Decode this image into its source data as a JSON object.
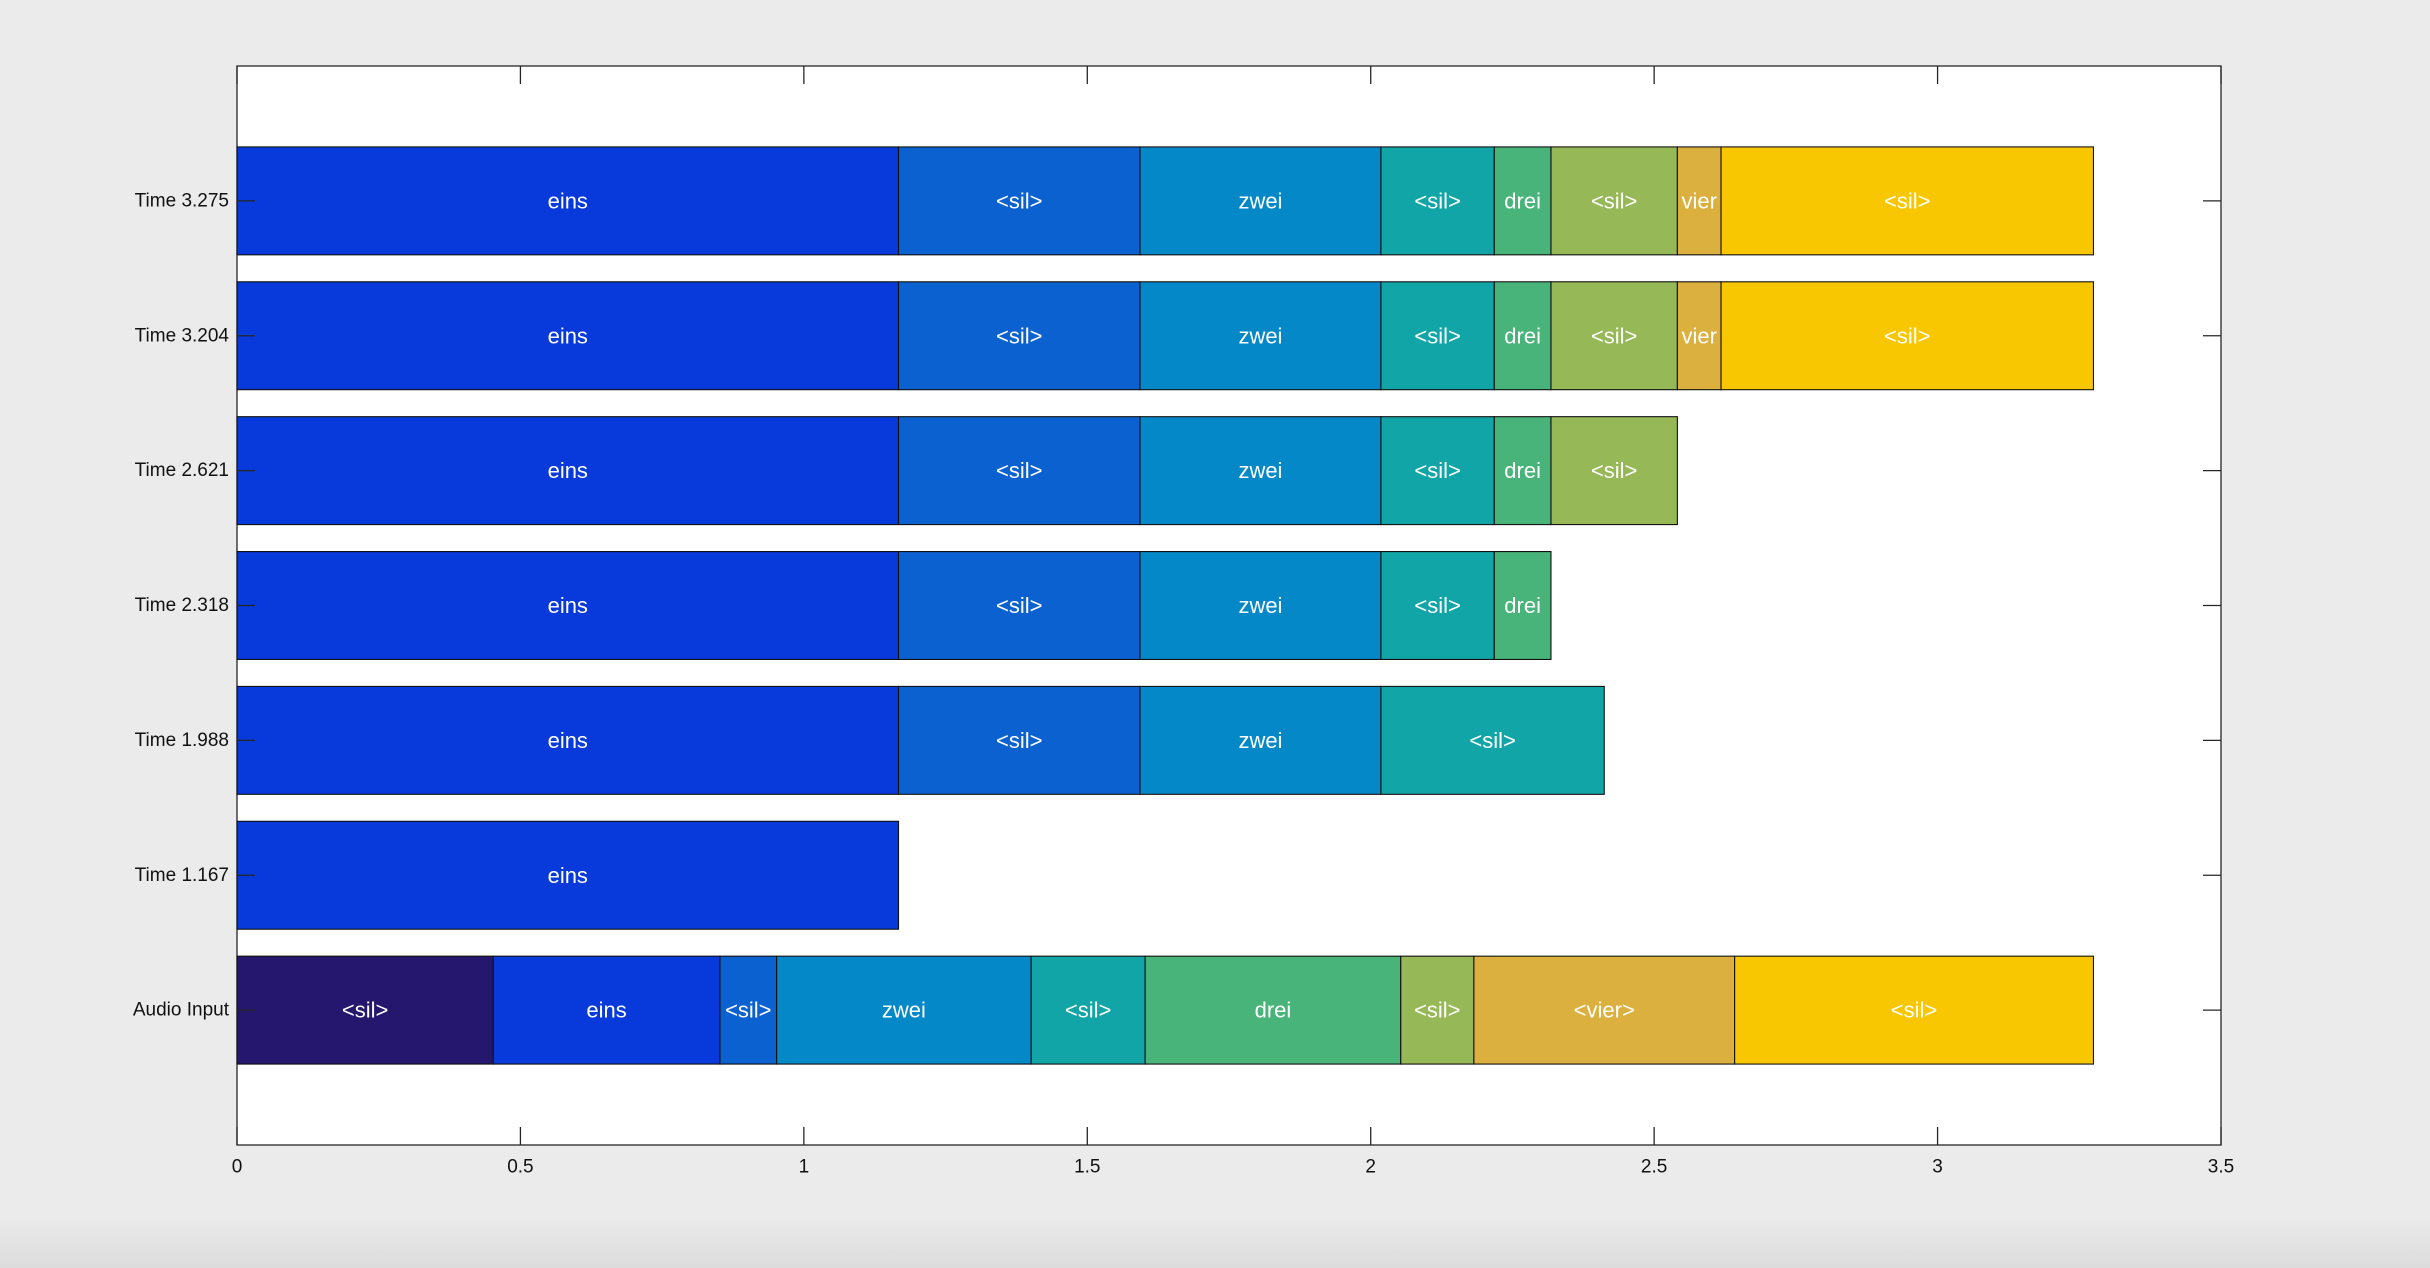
{
  "chart_data": {
    "type": "bar",
    "orientation": "horizontal-stacked",
    "title": "",
    "xlabel": "",
    "ylabel": "",
    "xlim": [
      0,
      3.5
    ],
    "xticks": [
      0,
      0.5,
      1,
      1.5,
      2,
      2.5,
      3,
      3.5
    ],
    "xtick_labels": [
      "0",
      "0.5",
      "1",
      "1.5",
      "2",
      "2.5",
      "3",
      "3.5"
    ],
    "grid": false,
    "categories": [
      "Time 3.275",
      "Time 3.204",
      "Time 2.621",
      "Time 2.318",
      "Time 1.988",
      "Time 1.167",
      "Audio Input"
    ],
    "rows": [
      {
        "label": "Time 3.275",
        "segments": [
          {
            "word": "eins",
            "start": 0,
            "end": 1.167,
            "color": "#0739db"
          },
          {
            "word": "<sil>",
            "start": 1.167,
            "end": 1.593,
            "color": "#0c61d0"
          },
          {
            "word": "zwei",
            "start": 1.593,
            "end": 2.018,
            "color": "#0488c7"
          },
          {
            "word": "<sil>",
            "start": 2.018,
            "end": 2.218,
            "color": "#12a5a8"
          },
          {
            "word": "drei",
            "start": 2.218,
            "end": 2.318,
            "color": "#48b479"
          },
          {
            "word": "<sil>",
            "start": 2.318,
            "end": 2.541,
            "color": "#97b856"
          },
          {
            "word": "vier",
            "start": 2.541,
            "end": 2.618,
            "color": "#dcb03e"
          },
          {
            "word": "<sil>",
            "start": 2.618,
            "end": 3.275,
            "color": "#f9c701"
          }
        ]
      },
      {
        "label": "Time 3.204",
        "segments": [
          {
            "word": "eins",
            "start": 0,
            "end": 1.167,
            "color": "#0739db"
          },
          {
            "word": "<sil>",
            "start": 1.167,
            "end": 1.593,
            "color": "#0c61d0"
          },
          {
            "word": "zwei",
            "start": 1.593,
            "end": 2.018,
            "color": "#0488c7"
          },
          {
            "word": "<sil>",
            "start": 2.018,
            "end": 2.218,
            "color": "#12a5a8"
          },
          {
            "word": "drei",
            "start": 2.218,
            "end": 2.318,
            "color": "#48b479"
          },
          {
            "word": "<sil>",
            "start": 2.318,
            "end": 2.541,
            "color": "#97b856"
          },
          {
            "word": "vier",
            "start": 2.541,
            "end": 2.618,
            "color": "#dcb03e"
          },
          {
            "word": "<sil>",
            "start": 2.618,
            "end": 3.275,
            "color": "#f9c701"
          }
        ]
      },
      {
        "label": "Time 2.621",
        "segments": [
          {
            "word": "eins",
            "start": 0,
            "end": 1.167,
            "color": "#0739db"
          },
          {
            "word": "<sil>",
            "start": 1.167,
            "end": 1.593,
            "color": "#0c61d0"
          },
          {
            "word": "zwei",
            "start": 1.593,
            "end": 2.018,
            "color": "#0488c7"
          },
          {
            "word": "<sil>",
            "start": 2.018,
            "end": 2.218,
            "color": "#12a5a8"
          },
          {
            "word": "drei",
            "start": 2.218,
            "end": 2.318,
            "color": "#48b479"
          },
          {
            "word": "<sil>",
            "start": 2.318,
            "end": 2.541,
            "color": "#97b856"
          }
        ]
      },
      {
        "label": "Time 2.318",
        "segments": [
          {
            "word": "eins",
            "start": 0,
            "end": 1.167,
            "color": "#0739db"
          },
          {
            "word": "<sil>",
            "start": 1.167,
            "end": 1.593,
            "color": "#0c61d0"
          },
          {
            "word": "zwei",
            "start": 1.593,
            "end": 2.018,
            "color": "#0488c7"
          },
          {
            "word": "<sil>",
            "start": 2.018,
            "end": 2.218,
            "color": "#12a5a8"
          },
          {
            "word": "drei",
            "start": 2.218,
            "end": 2.318,
            "color": "#48b479"
          }
        ]
      },
      {
        "label": "Time 1.988",
        "segments": [
          {
            "word": "eins",
            "start": 0,
            "end": 1.167,
            "color": "#0739db"
          },
          {
            "word": "<sil>",
            "start": 1.167,
            "end": 1.593,
            "color": "#0c61d0"
          },
          {
            "word": "zwei",
            "start": 1.593,
            "end": 2.018,
            "color": "#0488c7"
          },
          {
            "word": "<sil>",
            "start": 2.018,
            "end": 2.412,
            "color": "#12a5a8"
          }
        ]
      },
      {
        "label": "Time 1.167",
        "segments": [
          {
            "word": "eins",
            "start": 0,
            "end": 1.167,
            "color": "#0739db"
          }
        ]
      },
      {
        "label": "Audio Input",
        "segments": [
          {
            "word": "<sil>",
            "start": 0,
            "end": 0.452,
            "color": "#26176e"
          },
          {
            "word": "eins",
            "start": 0.452,
            "end": 0.852,
            "color": "#0739db"
          },
          {
            "word": "<sil>",
            "start": 0.852,
            "end": 0.952,
            "color": "#0c61d0"
          },
          {
            "word": "zwei",
            "start": 0.952,
            "end": 1.401,
            "color": "#0488c7"
          },
          {
            "word": "<sil>",
            "start": 1.401,
            "end": 1.602,
            "color": "#12a5a8"
          },
          {
            "word": "drei",
            "start": 1.602,
            "end": 2.053,
            "color": "#48b479"
          },
          {
            "word": "<sil>",
            "start": 2.053,
            "end": 2.182,
            "color": "#97b856"
          },
          {
            "word": "<vier>",
            "start": 2.182,
            "end": 2.642,
            "color": "#dcb03e"
          },
          {
            "word": "<sil>",
            "start": 2.642,
            "end": 3.275,
            "color": "#f9c701"
          }
        ]
      }
    ]
  }
}
